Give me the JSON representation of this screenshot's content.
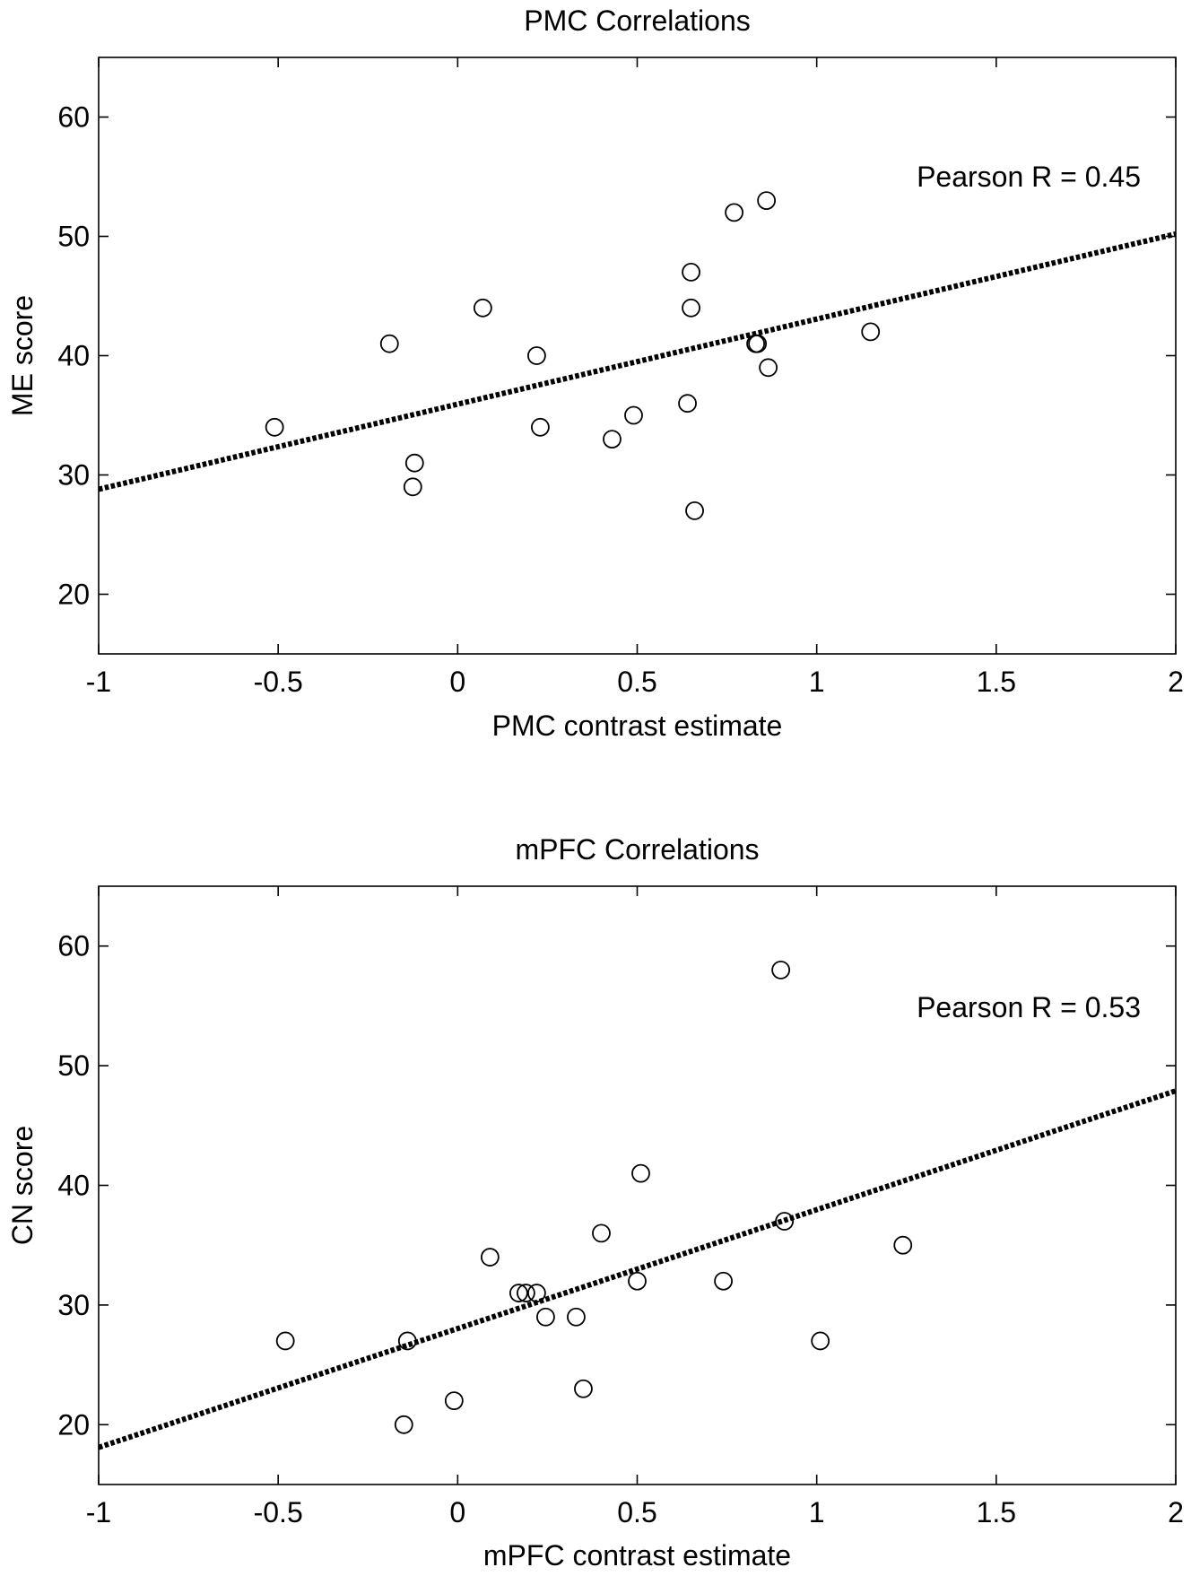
{
  "chart_data": [
    {
      "type": "scatter",
      "title": "PMC Correlations",
      "xlabel": "PMC contrast estimate",
      "ylabel": "ME score",
      "xlim": [
        -1,
        2
      ],
      "ylim": [
        15,
        65
      ],
      "xticks": [
        -1,
        -0.5,
        0,
        0.5,
        1,
        1.5,
        2
      ],
      "xtick_labels": [
        "-1",
        "-0.5",
        "0",
        "0.5",
        "1",
        "1.5",
        "2"
      ],
      "yticks": [
        20,
        30,
        40,
        50,
        60
      ],
      "ytick_labels": [
        "20",
        "30",
        "40",
        "50",
        "60"
      ],
      "annotation": "Pearson R = 0.45",
      "grid": false,
      "points": [
        {
          "x": -0.51,
          "y": 34
        },
        {
          "x": -0.19,
          "y": 41
        },
        {
          "x": -0.12,
          "y": 31
        },
        {
          "x": -0.125,
          "y": 29
        },
        {
          "x": 0.07,
          "y": 44
        },
        {
          "x": 0.22,
          "y": 40
        },
        {
          "x": 0.23,
          "y": 34
        },
        {
          "x": 0.43,
          "y": 33
        },
        {
          "x": 0.49,
          "y": 35
        },
        {
          "x": 0.64,
          "y": 36
        },
        {
          "x": 0.65,
          "y": 47
        },
        {
          "x": 0.65,
          "y": 44
        },
        {
          "x": 0.66,
          "y": 27
        },
        {
          "x": 0.77,
          "y": 52
        },
        {
          "x": 0.83,
          "y": 41
        },
        {
          "x": 0.835,
          "y": 41
        },
        {
          "x": 0.86,
          "y": 53
        },
        {
          "x": 0.865,
          "y": 39
        },
        {
          "x": 1.15,
          "y": 42
        }
      ],
      "fit_line": {
        "x": [
          -1,
          2
        ],
        "y": [
          28.8,
          50.2
        ]
      }
    },
    {
      "type": "scatter",
      "title": "mPFC Correlations",
      "xlabel": "mPFC contrast estimate",
      "ylabel": "CN score",
      "xlim": [
        -1,
        2
      ],
      "ylim": [
        15,
        65
      ],
      "xticks": [
        -1,
        -0.5,
        0,
        0.5,
        1,
        1.5,
        2
      ],
      "xtick_labels": [
        "-1",
        "-0.5",
        "0",
        "0.5",
        "1",
        "1.5",
        "2"
      ],
      "yticks": [
        20,
        30,
        40,
        50,
        60
      ],
      "ytick_labels": [
        "20",
        "30",
        "40",
        "50",
        "60"
      ],
      "annotation": "Pearson R = 0.53",
      "grid": false,
      "points": [
        {
          "x": -0.48,
          "y": 27
        },
        {
          "x": -0.14,
          "y": 27
        },
        {
          "x": -0.15,
          "y": 20
        },
        {
          "x": -0.01,
          "y": 22
        },
        {
          "x": 0.09,
          "y": 34
        },
        {
          "x": 0.17,
          "y": 31
        },
        {
          "x": 0.19,
          "y": 31
        },
        {
          "x": 0.22,
          "y": 31
        },
        {
          "x": 0.245,
          "y": 29
        },
        {
          "x": 0.33,
          "y": 29
        },
        {
          "x": 0.35,
          "y": 23
        },
        {
          "x": 0.4,
          "y": 36
        },
        {
          "x": 0.5,
          "y": 32
        },
        {
          "x": 0.51,
          "y": 41
        },
        {
          "x": 0.74,
          "y": 32
        },
        {
          "x": 0.9,
          "y": 58
        },
        {
          "x": 0.91,
          "y": 37
        },
        {
          "x": 1.01,
          "y": 27
        },
        {
          "x": 1.24,
          "y": 35
        }
      ],
      "fit_line": {
        "x": [
          -1,
          2
        ],
        "y": [
          18.1,
          47.9
        ]
      }
    }
  ]
}
